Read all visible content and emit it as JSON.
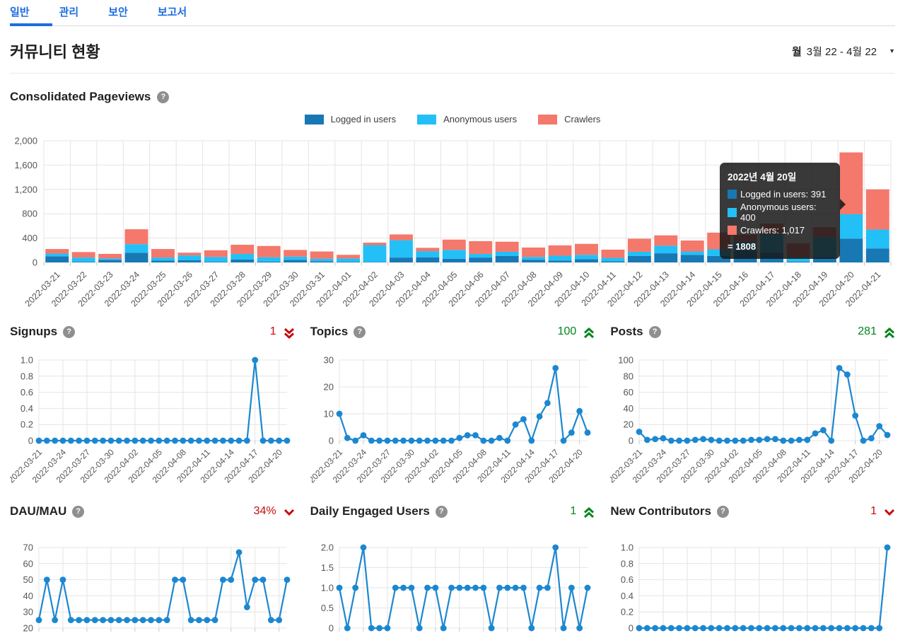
{
  "tabs": [
    {
      "label": "일반",
      "active": true
    },
    {
      "label": "관리",
      "active": false
    },
    {
      "label": "보안",
      "active": false
    },
    {
      "label": "보고서",
      "active": false
    }
  ],
  "page_title": "커뮤니티 현황",
  "date_range": {
    "prefix": "월",
    "label": "3월 22 - 4월 22"
  },
  "help_icon_glyph": "?",
  "caret_glyph": "▼",
  "colors": {
    "accent": "#1B6DE0",
    "positive": "#02861E",
    "negative": "#C80A0A",
    "line": "#1C87D1",
    "grid": "#e4e4e4",
    "logged_in": "#1878B4",
    "anonymous": "#23BFF7",
    "crawlers": "#F4786B"
  },
  "tooltip": {
    "title": "2022년 4월 20일",
    "rows": [
      {
        "label": "Logged in users: 391",
        "color": "#1878B4"
      },
      {
        "label": "Anonymous users: 400",
        "color": "#23BFF7"
      },
      {
        "label": "Crawlers: 1,017",
        "color": "#F4786B"
      }
    ],
    "total": "= 1808"
  },
  "chart_data": [
    {
      "id": "consolidated-pageviews",
      "type": "stacked_bar",
      "title": "Consolidated Pageviews",
      "categories": [
        "2022-03-21",
        "2022-03-22",
        "2022-03-23",
        "2022-03-24",
        "2022-03-25",
        "2022-03-26",
        "2022-03-27",
        "2022-03-28",
        "2022-03-29",
        "2022-03-30",
        "2022-03-31",
        "2022-04-01",
        "2022-04-02",
        "2022-04-03",
        "2022-04-04",
        "2022-04-05",
        "2022-04-06",
        "2022-04-07",
        "2022-04-08",
        "2022-04-09",
        "2022-04-10",
        "2022-04-11",
        "2022-04-12",
        "2022-04-13",
        "2022-04-14",
        "2022-04-15",
        "2022-04-16",
        "2022-04-17",
        "2022-04-18",
        "2022-04-19",
        "2022-04-20",
        "2022-04-21"
      ],
      "series": [
        {
          "name": "Logged in users",
          "color": "#1878B4",
          "values": [
            100,
            10,
            40,
            160,
            30,
            35,
            10,
            50,
            15,
            40,
            20,
            10,
            5,
            80,
            85,
            60,
            80,
            105,
            45,
            30,
            55,
            20,
            105,
            150,
            125,
            105,
            185,
            160,
            15,
            85,
            391,
            230
          ]
        },
        {
          "name": "Anonymous users",
          "color": "#23BFF7",
          "values": [
            45,
            70,
            25,
            140,
            50,
            80,
            80,
            90,
            70,
            55,
            40,
            55,
            280,
            285,
            100,
            145,
            60,
            70,
            45,
            80,
            70,
            55,
            70,
            125,
            55,
            110,
            155,
            300,
            65,
            330,
            400,
            310
          ]
        },
        {
          "name": "Crawlers",
          "color": "#F4786B",
          "values": [
            75,
            90,
            75,
            245,
            140,
            45,
            110,
            150,
            185,
            110,
            120,
            60,
            40,
            95,
            55,
            170,
            210,
            165,
            155,
            170,
            180,
            135,
            215,
            170,
            180,
            275,
            115,
            180,
            235,
            165,
            1017,
            660
          ]
        }
      ],
      "ylim": [
        0,
        2000
      ],
      "yticks": [
        0,
        400,
        800,
        1200,
        1600,
        2000
      ],
      "ytick_labels": [
        "0",
        "400",
        "800",
        "1,200",
        "1,600",
        "2,000"
      ],
      "grid": true,
      "legend_position": "top"
    },
    {
      "id": "signups",
      "type": "line",
      "title": "Signups",
      "value": "1",
      "trend": "double-down",
      "value_color": "#C80A0A",
      "categories": [
        "2022-03-21",
        "2022-03-22",
        "2022-03-23",
        "2022-03-24",
        "2022-03-25",
        "2022-03-26",
        "2022-03-27",
        "2022-03-28",
        "2022-03-29",
        "2022-03-30",
        "2022-03-31",
        "2022-04-01",
        "2022-04-02",
        "2022-04-03",
        "2022-04-04",
        "2022-04-05",
        "2022-04-06",
        "2022-04-07",
        "2022-04-08",
        "2022-04-09",
        "2022-04-10",
        "2022-04-11",
        "2022-04-12",
        "2022-04-13",
        "2022-04-14",
        "2022-04-15",
        "2022-04-16",
        "2022-04-17",
        "2022-04-18",
        "2022-04-19",
        "2022-04-20",
        "2022-04-21"
      ],
      "values": [
        0,
        0,
        0,
        0,
        0,
        0,
        0,
        0,
        0,
        0,
        0,
        0,
        0,
        0,
        0,
        0,
        0,
        0,
        0,
        0,
        0,
        0,
        0,
        0,
        0,
        0,
        0,
        1,
        0,
        0,
        0,
        0
      ],
      "ylim": [
        0,
        1
      ],
      "yticks": [
        0,
        0.2,
        0.4,
        0.6,
        0.8,
        1
      ],
      "ytick_labels": [
        "0",
        "0.2",
        "0.4",
        "0.6",
        "0.8",
        "1.0"
      ],
      "grid": true
    },
    {
      "id": "topics",
      "type": "line",
      "title": "Topics",
      "value": "100",
      "trend": "double-up",
      "value_color": "#02861E",
      "categories": [
        "2022-03-21",
        "2022-03-22",
        "2022-03-23",
        "2022-03-24",
        "2022-03-25",
        "2022-03-26",
        "2022-03-27",
        "2022-03-28",
        "2022-03-29",
        "2022-03-30",
        "2022-03-31",
        "2022-04-01",
        "2022-04-02",
        "2022-04-03",
        "2022-04-04",
        "2022-04-05",
        "2022-04-06",
        "2022-04-07",
        "2022-04-08",
        "2022-04-09",
        "2022-04-10",
        "2022-04-11",
        "2022-04-12",
        "2022-04-13",
        "2022-04-14",
        "2022-04-15",
        "2022-04-16",
        "2022-04-17",
        "2022-04-18",
        "2022-04-19",
        "2022-04-20",
        "2022-04-21"
      ],
      "values": [
        10,
        1,
        0,
        2,
        0,
        0,
        0,
        0,
        0,
        0,
        0,
        0,
        0,
        0,
        0,
        1,
        2,
        2,
        0,
        0,
        1,
        0,
        6,
        8,
        0,
        9,
        14,
        27,
        0,
        3,
        11,
        3
      ],
      "ylim": [
        0,
        30
      ],
      "yticks": [
        0,
        10,
        20,
        30
      ],
      "ytick_labels": [
        "0",
        "10",
        "20",
        "30"
      ],
      "grid": true
    },
    {
      "id": "posts",
      "type": "line",
      "title": "Posts",
      "value": "281",
      "trend": "double-up",
      "value_color": "#02861E",
      "categories": [
        "2022-03-21",
        "2022-03-22",
        "2022-03-23",
        "2022-03-24",
        "2022-03-25",
        "2022-03-26",
        "2022-03-27",
        "2022-03-28",
        "2022-03-29",
        "2022-03-30",
        "2022-03-31",
        "2022-04-01",
        "2022-04-02",
        "2022-04-03",
        "2022-04-04",
        "2022-04-05",
        "2022-04-06",
        "2022-04-07",
        "2022-04-08",
        "2022-04-09",
        "2022-04-10",
        "2022-04-11",
        "2022-04-12",
        "2022-04-13",
        "2022-04-14",
        "2022-04-15",
        "2022-04-16",
        "2022-04-17",
        "2022-04-18",
        "2022-04-19",
        "2022-04-20",
        "2022-04-21"
      ],
      "values": [
        11,
        1,
        2,
        3,
        0,
        0,
        0,
        1,
        2,
        1,
        0,
        0,
        0,
        0,
        1,
        1,
        2,
        2,
        0,
        0,
        1,
        1,
        9,
        13,
        0,
        90,
        82,
        31,
        0,
        3,
        18,
        7
      ],
      "ylim": [
        0,
        100
      ],
      "yticks": [
        0,
        20,
        40,
        60,
        80,
        100
      ],
      "ytick_labels": [
        "0",
        "20",
        "40",
        "60",
        "80",
        "100"
      ],
      "grid": true
    },
    {
      "id": "dau-mau",
      "type": "line",
      "title": "DAU/MAU",
      "value": "34%",
      "trend": "down",
      "value_color": "#C80A0A",
      "categories": [
        "2022-03-21",
        "2022-03-22",
        "2022-03-23",
        "2022-03-24",
        "2022-03-25",
        "2022-03-26",
        "2022-03-27",
        "2022-03-28",
        "2022-03-29",
        "2022-03-30",
        "2022-03-31",
        "2022-04-01",
        "2022-04-02",
        "2022-04-03",
        "2022-04-04",
        "2022-04-05",
        "2022-04-06",
        "2022-04-07",
        "2022-04-08",
        "2022-04-09",
        "2022-04-10",
        "2022-04-11",
        "2022-04-12",
        "2022-04-13",
        "2022-04-14",
        "2022-04-15",
        "2022-04-16",
        "2022-04-17",
        "2022-04-18",
        "2022-04-19",
        "2022-04-20",
        "2022-04-21"
      ],
      "values": [
        25,
        50,
        25,
        50,
        25,
        25,
        25,
        25,
        25,
        25,
        25,
        25,
        25,
        25,
        25,
        25,
        25,
        50,
        50,
        25,
        25,
        25,
        25,
        50,
        50,
        67,
        33,
        50,
        50,
        25,
        25,
        50
      ],
      "ylim": [
        20,
        70
      ],
      "yticks": [
        20,
        30,
        40,
        50,
        60,
        70
      ],
      "ytick_labels": [
        "20",
        "30",
        "40",
        "50",
        "60",
        "70"
      ],
      "grid": true
    },
    {
      "id": "daily-engaged-users",
      "type": "line",
      "title": "Daily Engaged Users",
      "value": "1",
      "trend": "double-up",
      "value_color": "#02861E",
      "categories": [
        "2022-03-21",
        "2022-03-22",
        "2022-03-23",
        "2022-03-24",
        "2022-03-25",
        "2022-03-26",
        "2022-03-27",
        "2022-03-28",
        "2022-03-29",
        "2022-03-30",
        "2022-03-31",
        "2022-04-01",
        "2022-04-02",
        "2022-04-03",
        "2022-04-04",
        "2022-04-05",
        "2022-04-06",
        "2022-04-07",
        "2022-04-08",
        "2022-04-09",
        "2022-04-10",
        "2022-04-11",
        "2022-04-12",
        "2022-04-13",
        "2022-04-14",
        "2022-04-15",
        "2022-04-16",
        "2022-04-17",
        "2022-04-18",
        "2022-04-19",
        "2022-04-20",
        "2022-04-21"
      ],
      "values": [
        1,
        0,
        1,
        2,
        0,
        0,
        0,
        1,
        1,
        1,
        0,
        1,
        1,
        0,
        1,
        1,
        1,
        1,
        1,
        0,
        1,
        1,
        1,
        1,
        0,
        1,
        1,
        2,
        0,
        1,
        0,
        1
      ],
      "ylim": [
        0,
        2
      ],
      "yticks": [
        0,
        0.5,
        1,
        1.5,
        2
      ],
      "ytick_labels": [
        "0",
        "0.5",
        "1.0",
        "1.5",
        "2.0"
      ],
      "grid": true
    },
    {
      "id": "new-contributors",
      "type": "line",
      "title": "New Contributors",
      "value": "1",
      "trend": "down",
      "value_color": "#C80A0A",
      "categories": [
        "2022-03-21",
        "2022-03-22",
        "2022-03-23",
        "2022-03-24",
        "2022-03-25",
        "2022-03-26",
        "2022-03-27",
        "2022-03-28",
        "2022-03-29",
        "2022-03-30",
        "2022-03-31",
        "2022-04-01",
        "2022-04-02",
        "2022-04-03",
        "2022-04-04",
        "2022-04-05",
        "2022-04-06",
        "2022-04-07",
        "2022-04-08",
        "2022-04-09",
        "2022-04-10",
        "2022-04-11",
        "2022-04-12",
        "2022-04-13",
        "2022-04-14",
        "2022-04-15",
        "2022-04-16",
        "2022-04-17",
        "2022-04-18",
        "2022-04-19",
        "2022-04-20",
        "2022-04-21"
      ],
      "values": [
        0,
        0,
        0,
        0,
        0,
        0,
        0,
        0,
        0,
        0,
        0,
        0,
        0,
        0,
        0,
        0,
        0,
        0,
        0,
        0,
        0,
        0,
        0,
        0,
        0,
        0,
        0,
        0,
        0,
        0,
        0,
        1
      ],
      "ylim": [
        0,
        1
      ],
      "yticks": [
        0,
        0.2,
        0.4,
        0.6,
        0.8,
        1
      ],
      "ytick_labels": [
        "0",
        "0.2",
        "0.4",
        "0.6",
        "0.8",
        "1.0"
      ],
      "grid": true
    }
  ]
}
